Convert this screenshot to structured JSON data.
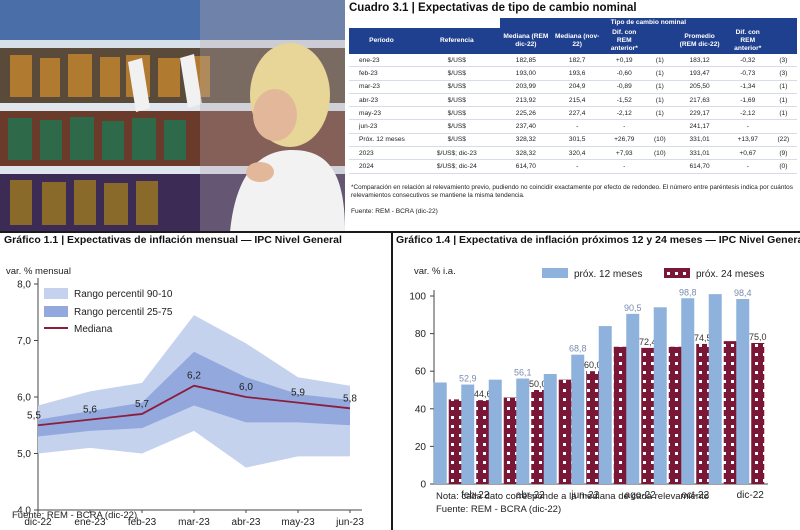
{
  "table": {
    "title": "Cuadro 3.1 | Expectativas de tipo de cambio nominal",
    "group_header": "Tipo de cambio nominal",
    "headers": [
      "Período",
      "Referencia",
      "Mediana (REM dic-22)",
      "Mediana (nov-22)",
      "Dif. con REM anterior*",
      "",
      "Promedio (REM dic-22)",
      "Dif. con REM anterior*",
      ""
    ],
    "rows": [
      [
        "ene-23",
        "$/US$",
        "182,85",
        "182,7",
        "+0,19",
        "(1)",
        "183,12",
        "-0,32",
        "(3)"
      ],
      [
        "feb-23",
        "$/US$",
        "193,00",
        "193,6",
        "-0,60",
        "(1)",
        "193,47",
        "-0,73",
        "(3)"
      ],
      [
        "mar-23",
        "$/US$",
        "203,99",
        "204,9",
        "-0,89",
        "(1)",
        "205,50",
        "-1,34",
        "(1)"
      ],
      [
        "abr-23",
        "$/US$",
        "213,92",
        "215,4",
        "-1,52",
        "(1)",
        "217,63",
        "-1,69",
        "(1)"
      ],
      [
        "may-23",
        "$/US$",
        "225,26",
        "227,4",
        "-2,12",
        "(1)",
        "229,17",
        "-2,12",
        "(1)"
      ],
      [
        "jun-23",
        "$/US$",
        "237,40",
        "-",
        "-",
        "",
        "241,17",
        "-",
        ""
      ],
      [
        "Próx. 12 meses",
        "$/US$",
        "328,32",
        "301,5",
        "+26,79",
        "(10)",
        "331,01",
        "+13,97",
        "(22)"
      ],
      [
        "2023",
        "$/US$; dic-23",
        "328,32",
        "320,4",
        "+7,93",
        "(10)",
        "331,01",
        "+0,67",
        "(9)"
      ],
      [
        "2024",
        "$/US$; dic-24",
        "614,70",
        "-",
        "-",
        "",
        "614,70",
        "-",
        "(0)"
      ]
    ],
    "note": "*Comparación en relación al relevamiento previo, pudiendo no coincidir exactamente por efecto de redondeo. El número entre paréntesis indica por cuántos relevamientos consecutivos se mantiene la misma tendencia.",
    "source": "Fuente: REM - BCRA (dic-22)"
  },
  "colors": {
    "table_header": "#1f3f8f",
    "band_90": "#c5d2ee",
    "band_75": "#93a8dd",
    "median": "#8a1e3c",
    "bar_12": "#8fb2dc",
    "bar_24": "#7a1636"
  },
  "chart_data": [
    {
      "type": "area",
      "title": "Gráfico 1.1 | Expectativas de inflación mensual — IPC Nivel General",
      "ylabel": "var. % mensual",
      "x": [
        "dic-22",
        "ene-23",
        "feb-23",
        "mar-23",
        "abr-23",
        "may-23",
        "jun-23"
      ],
      "ylim": [
        4.0,
        8.0
      ],
      "yticks": [
        "4,0",
        "5,0",
        "6,0",
        "7,0",
        "8,0"
      ],
      "legend": [
        "Rango percentil 90-10",
        "Rango percentil 25-75",
        "Mediana"
      ],
      "legend_position": "top-left",
      "series": [
        {
          "name": "Rango percentil 90-10",
          "low": [
            5.0,
            5.1,
            5.0,
            5.4,
            4.75,
            4.95,
            4.95
          ],
          "high": [
            5.85,
            6.1,
            6.25,
            7.45,
            6.95,
            6.35,
            6.2
          ]
        },
        {
          "name": "Rango percentil 25-75",
          "low": [
            5.3,
            5.4,
            5.45,
            5.85,
            5.55,
            5.55,
            5.5
          ],
          "high": [
            5.6,
            5.75,
            5.9,
            6.8,
            6.35,
            6.05,
            5.95
          ]
        },
        {
          "name": "Mediana",
          "values": [
            5.5,
            5.6,
            5.7,
            6.2,
            6.0,
            5.9,
            5.8
          ],
          "labels": [
            "5,5",
            "5,6",
            "5,7",
            "6,2",
            "6,0",
            "5,9",
            "5,8"
          ]
        }
      ],
      "source": "Fuente: REM - BCRA (dic-22)"
    },
    {
      "type": "bar",
      "title": "Gráfico 1.4 | Expectativa de inflación próximos 12 y 24 meses — IPC Nivel General",
      "ylabel": "var. % i.a.",
      "categories": [
        "ene-22",
        "feb-22",
        "mar-22",
        "abr-22",
        "may-22",
        "jun-22",
        "jul-22",
        "ago-22",
        "sep-22",
        "oct-22",
        "nov-22",
        "dic-22"
      ],
      "xtick_labels": [
        "",
        "feb-22",
        "",
        "abr-22",
        "",
        "jun-22",
        "",
        "ago-22",
        "",
        "oct-22",
        "",
        "dic-22"
      ],
      "ylim": [
        0,
        100
      ],
      "yticks": [
        "0",
        "20",
        "40",
        "60",
        "80",
        "100"
      ],
      "legend_position": "top-right",
      "series": [
        {
          "name": "próx. 12 meses",
          "values": [
            54.0,
            52.9,
            55.5,
            56.1,
            58.5,
            68.8,
            84.0,
            90.5,
            94.0,
            98.8,
            101.0,
            98.4
          ],
          "labels": [
            "",
            "52,9",
            "",
            "56,1",
            "",
            "68,8",
            "",
            "90,5",
            "",
            "98,8",
            "",
            "98,4"
          ]
        },
        {
          "name": "próx. 24 meses",
          "values": [
            45.0,
            44.6,
            46.0,
            50.0,
            55.5,
            60.0,
            73.0,
            72.4,
            73.0,
            74.5,
            76.0,
            75.0
          ],
          "labels": [
            "",
            "44,6",
            "",
            "50,0",
            "",
            "60,0",
            "",
            "72,4",
            "",
            "74,5",
            "",
            "75,0"
          ]
        }
      ],
      "note": "Nota: cada dato corresponde a la mediana de cada relevamiento",
      "source": "Fuente: REM - BCRA (dic-22)"
    }
  ]
}
